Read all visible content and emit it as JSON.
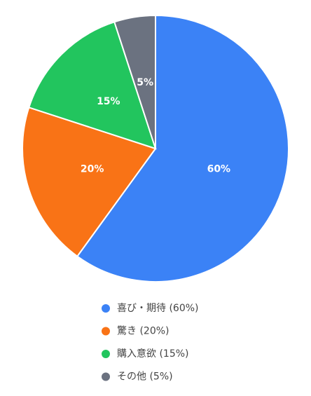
{
  "chart_data": {
    "type": "pie",
    "categories": [
      "喜び・期待 (60%)",
      "驚き (20%)",
      "購入意欲 (15%)",
      "その他 (5%)"
    ],
    "values": [
      60,
      20,
      15,
      5
    ],
    "value_labels": [
      "60%",
      "20%",
      "15%",
      "5%"
    ],
    "colors": [
      "#3b82f6",
      "#f97316",
      "#22c55e",
      "#6b7280"
    ]
  }
}
